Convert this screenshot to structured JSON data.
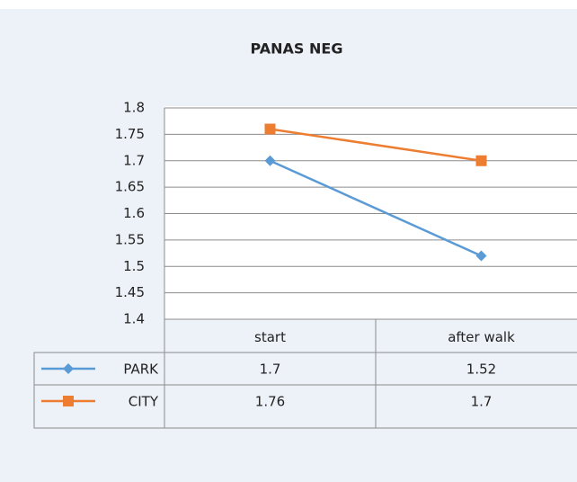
{
  "chart_data": {
    "type": "line",
    "title": "PANAS NEG",
    "categories": [
      "start",
      "after walk"
    ],
    "series": [
      {
        "name": "PARK",
        "color": "#5b9bd5",
        "marker": "diamond",
        "values": [
          1.7,
          1.52
        ]
      },
      {
        "name": "CITY",
        "color": "#ed7d31",
        "marker": "square",
        "values": [
          1.76,
          1.7
        ]
      }
    ],
    "ylim": [
      1.4,
      1.8
    ],
    "yticks": [
      1.4,
      1.45,
      1.5,
      1.55,
      1.6,
      1.65,
      1.7,
      1.75,
      1.8
    ],
    "grid": true,
    "data_table": true
  }
}
